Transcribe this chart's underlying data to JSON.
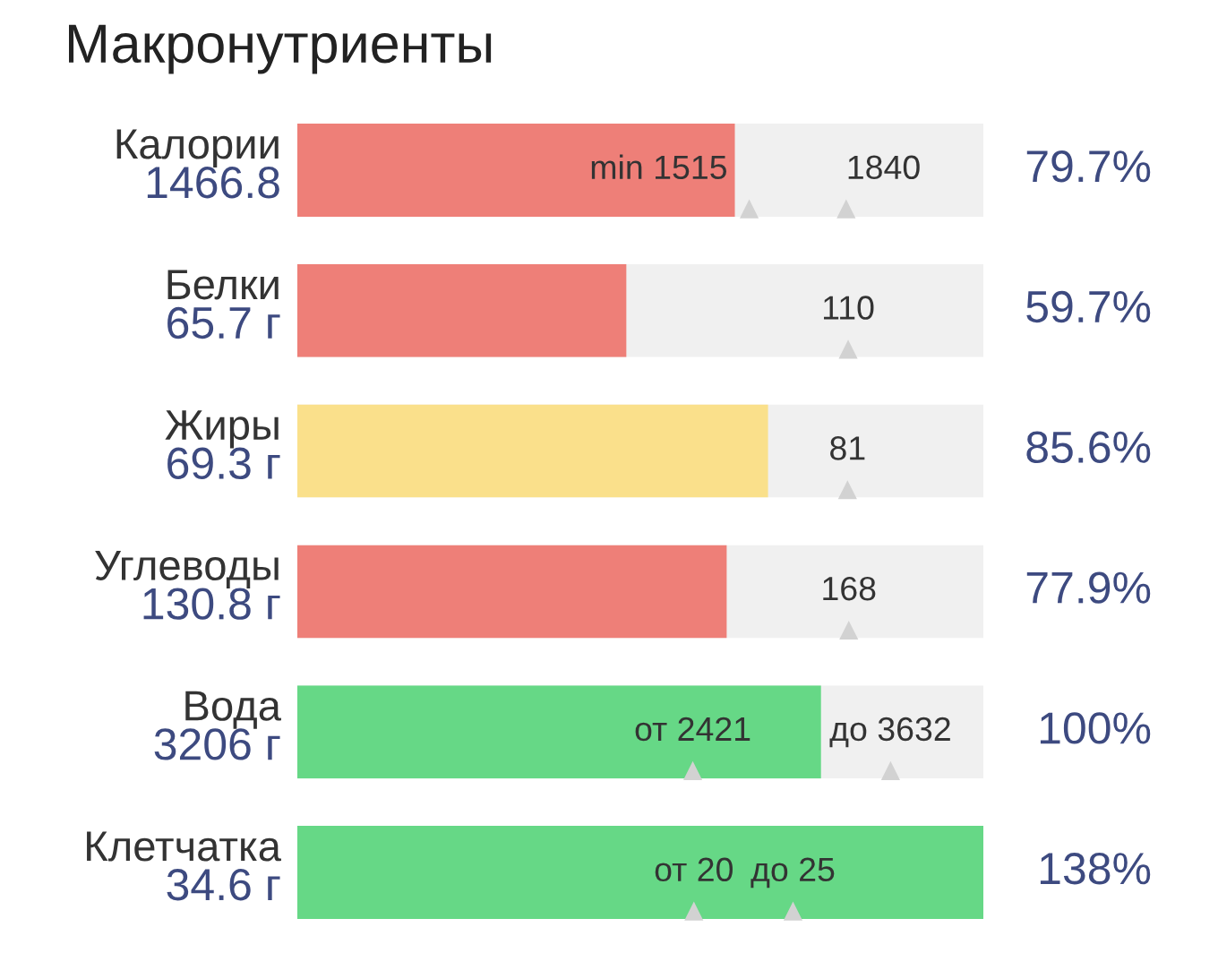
{
  "chart_data": [
    {
      "type": "bar",
      "title": "Макронутриенты",
      "orientation": "horizontal",
      "categories": [
        "Калории"
      ],
      "series": [
        {
          "color": "#ee7f78",
          "values": [
            1466.8
          ],
          "value_labels": [
            "1466.8"
          ]
        },
        {
          "type": "scatter",
          "color": "#d2d2d2",
          "marker": "triangle",
          "x": [
            "Калории",
            "Калории"
          ],
          "values": [
            1515,
            1840
          ],
          "value_labels": [
            "min 1515",
            "1840"
          ]
        }
      ],
      "bands": [
        {
          "axis": "x",
          "from": 0,
          "to": 2300,
          "color": "#f0f0f0"
        }
      ],
      "xlim": [
        0,
        2300
      ],
      "tick_labels": "y",
      "annotations": [
        "79.7%"
      ]
    },
    {
      "type": "bar",
      "orientation": "horizontal",
      "categories": [
        "Белки"
      ],
      "series": [
        {
          "color": "#ee7f78",
          "values": [
            65.7
          ],
          "value_labels": [
            "65.7 г"
          ]
        },
        {
          "type": "scatter",
          "color": "#d2d2d2",
          "marker": "triangle",
          "x": [
            "Белки"
          ],
          "values": [
            110
          ],
          "value_labels": [
            "110"
          ]
        }
      ],
      "bands": [
        {
          "axis": "x",
          "from": 0,
          "to": 137,
          "color": "#f0f0f0"
        }
      ],
      "xlim": [
        0,
        137
      ],
      "tick_labels": "y",
      "annotations": [
        "59.7%"
      ]
    },
    {
      "type": "bar",
      "orientation": "horizontal",
      "categories": [
        "Жиры"
      ],
      "series": [
        {
          "color": "#fae08b",
          "values": [
            69.3
          ],
          "value_labels": [
            "69.3 г"
          ]
        },
        {
          "type": "scatter",
          "color": "#d2d2d2",
          "marker": "triangle",
          "x": [
            "Жиры"
          ],
          "values": [
            81
          ],
          "value_labels": [
            "81"
          ]
        }
      ],
      "bands": [
        {
          "axis": "x",
          "from": 0,
          "to": 101,
          "color": "#f0f0f0"
        }
      ],
      "xlim": [
        0,
        101
      ],
      "tick_labels": "y",
      "annotations": [
        "85.6%"
      ]
    },
    {
      "type": "bar",
      "orientation": "horizontal",
      "categories": [
        "Углеводы"
      ],
      "series": [
        {
          "color": "#ee7f78",
          "values": [
            130.8
          ],
          "value_labels": [
            "130.8 г"
          ]
        },
        {
          "type": "scatter",
          "color": "#d2d2d2",
          "marker": "triangle",
          "x": [
            "Углеводы"
          ],
          "values": [
            168
          ],
          "value_labels": [
            "168"
          ]
        }
      ],
      "bands": [
        {
          "axis": "x",
          "from": 0,
          "to": 209,
          "color": "#f0f0f0"
        }
      ],
      "xlim": [
        0,
        209
      ],
      "tick_labels": "y",
      "annotations": [
        "77.9%"
      ]
    },
    {
      "type": "bar",
      "orientation": "horizontal",
      "categories": [
        "Вода"
      ],
      "series": [
        {
          "color": "#66d886",
          "values": [
            3206
          ],
          "value_labels": [
            "3206 г"
          ]
        },
        {
          "type": "scatter",
          "color": "#d2d2d2",
          "marker": "triangle",
          "x": [
            "Вода",
            "Вода"
          ],
          "values": [
            2421,
            3632
          ],
          "value_labels": [
            "от 2421",
            "до 3632"
          ]
        }
      ],
      "bands": [
        {
          "axis": "x",
          "from": 0,
          "to": 4200,
          "color": "#f0f0f0"
        }
      ],
      "xlim": [
        0,
        4200
      ],
      "tick_labels": "y",
      "annotations": [
        "100%"
      ]
    },
    {
      "type": "bar",
      "orientation": "horizontal",
      "categories": [
        "Клетчатка"
      ],
      "series": [
        {
          "color": "#66d886",
          "values": [
            34.6
          ],
          "value_labels": [
            "34.6 г"
          ]
        },
        {
          "type": "scatter",
          "color": "#d2d2d2",
          "marker": "triangle",
          "x": [
            "Клетчатка",
            "Клетчатка"
          ],
          "values": [
            20,
            25
          ],
          "value_labels": [
            "от 20",
            "до 25"
          ]
        }
      ],
      "xlim": [
        0,
        34.6
      ],
      "tick_labels": "y",
      "annotations": [
        "138%"
      ]
    }
  ]
}
